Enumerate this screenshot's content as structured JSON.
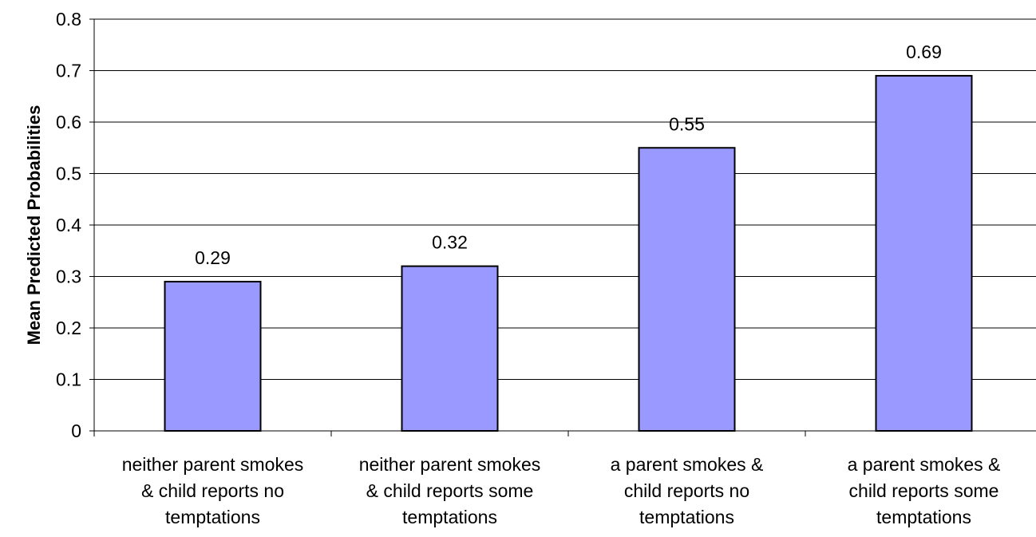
{
  "chart_data": {
    "type": "bar",
    "title": "",
    "xlabel": "",
    "ylabel": "Mean Predicted Probabilities",
    "ylim": [
      0,
      0.8
    ],
    "yticks": [
      "0",
      "0.1",
      "0.2",
      "0.3",
      "0.4",
      "0.5",
      "0.6",
      "0.7",
      "0.8"
    ],
    "grid": true,
    "legend": "none",
    "bar_color": "#9999ff",
    "categories": [
      [
        "neither parent smokes",
        "& child reports no",
        "temptations"
      ],
      [
        "neither parent smokes",
        "& child reports some",
        "temptations"
      ],
      [
        "a parent smokes &",
        "child reports no",
        "temptations"
      ],
      [
        "a parent smokes &",
        "child reports some",
        "temptations"
      ]
    ],
    "values": [
      0.29,
      0.32,
      0.55,
      0.69
    ],
    "data_labels": [
      "0.29",
      "0.32",
      "0.55",
      "0.69"
    ]
  }
}
